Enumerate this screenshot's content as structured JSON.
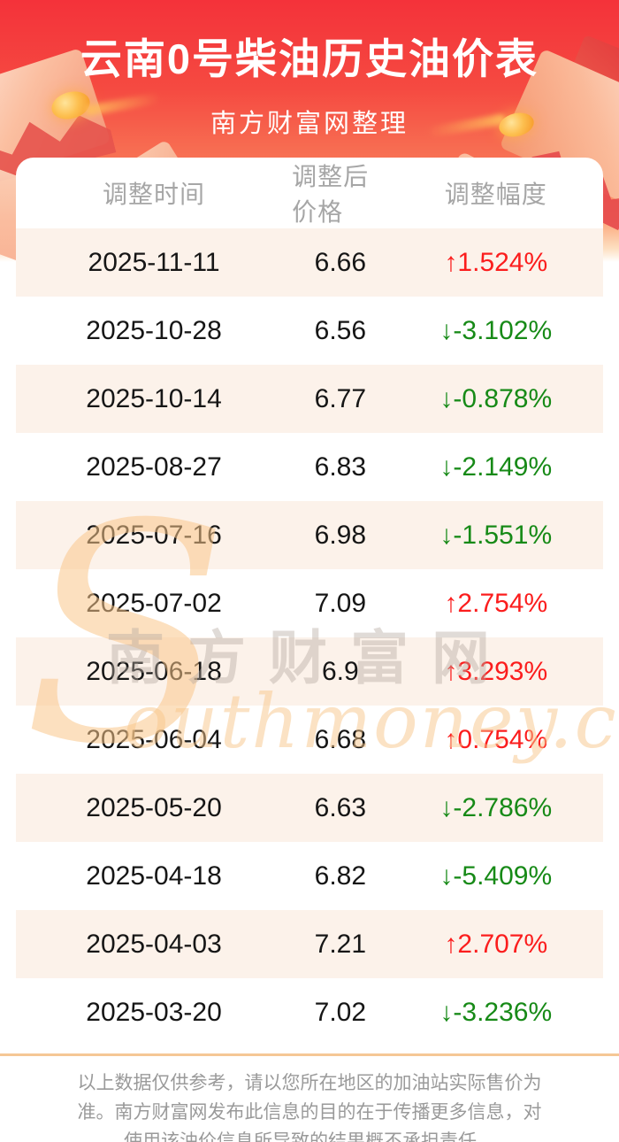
{
  "chart_data": {
    "type": "table",
    "title": "云南0号柴油历史油价表",
    "subtitle": "南方财富网整理",
    "columns": [
      "调整时间",
      "调整后价格",
      "调整幅度"
    ],
    "rows": [
      [
        "2025-11-11",
        "6.66",
        "↑1.524%"
      ],
      [
        "2025-10-28",
        "6.56",
        "↓-3.102%"
      ],
      [
        "2025-10-14",
        "6.77",
        "↓-0.878%"
      ],
      [
        "2025-08-27",
        "6.83",
        "↓-2.149%"
      ],
      [
        "2025-07-16",
        "6.98",
        "↓-1.551%"
      ],
      [
        "2025-07-02",
        "7.09",
        "↑2.754%"
      ],
      [
        "2025-06-18",
        "6.9",
        "↑3.293%"
      ],
      [
        "2025-06-04",
        "6.68",
        "↑0.754%"
      ],
      [
        "2025-05-20",
        "6.63",
        "↓-2.786%"
      ],
      [
        "2025-04-18",
        "6.82",
        "↓-5.409%"
      ],
      [
        "2025-04-03",
        "7.21",
        "↑2.707%"
      ],
      [
        "2025-03-20",
        "7.02",
        "↓-3.236%"
      ]
    ]
  },
  "ui": {
    "dirs": [
      "up",
      "down",
      "down",
      "down",
      "down",
      "up",
      "up",
      "up",
      "down",
      "down",
      "up",
      "down"
    ]
  },
  "watermark": {
    "s": "S",
    "cn": "南方财富网",
    "en": "outhmoney.com"
  },
  "footer": {
    "lines": [
      "以上数据仅供参考，请以您所在地区的加油站实际售价为",
      "准。南方财富网发布此信息的目的在于传播更多信息，对",
      "使用该油价信息所导致的结果概不承担责任。"
    ]
  },
  "colors": {
    "header_red_top": "#f4323a",
    "header_red_bottom": "#fba478",
    "up_red": "#fb1d1d",
    "down_green": "#178a17",
    "row_alt_bg": "#fcf2ea",
    "column_header_text": "#a6a6a6",
    "divider": "#f5c795",
    "footer_text": "#9a9a9a"
  }
}
